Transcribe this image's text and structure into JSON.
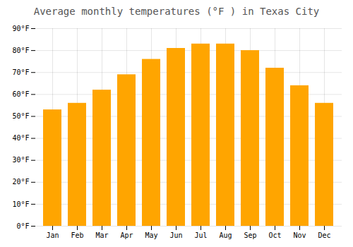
{
  "chart_data": {
    "type": "bar",
    "title": "Average monthly temperatures (°F ) in Texas City",
    "categories": [
      "Jan",
      "Feb",
      "Mar",
      "Apr",
      "May",
      "Jun",
      "Jul",
      "Aug",
      "Sep",
      "Oct",
      "Nov",
      "Dec"
    ],
    "values": [
      53,
      56,
      62,
      69,
      76,
      81,
      83,
      83,
      80,
      72,
      64,
      56
    ],
    "color": "#FFA500",
    "ylim": [
      0,
      90
    ],
    "yticks": [
      {
        "value": 0,
        "label": "0°F"
      },
      {
        "value": 10,
        "label": "10°F"
      },
      {
        "value": 20,
        "label": "20°F"
      },
      {
        "value": 30,
        "label": "30°F"
      },
      {
        "value": 40,
        "label": "40°F"
      },
      {
        "value": 50,
        "label": "50°F"
      },
      {
        "value": 60,
        "label": "60°F"
      },
      {
        "value": 70,
        "label": "70°F"
      },
      {
        "value": 80,
        "label": "80°F"
      },
      {
        "value": 90,
        "label": "90°F"
      }
    ],
    "grid": true
  }
}
